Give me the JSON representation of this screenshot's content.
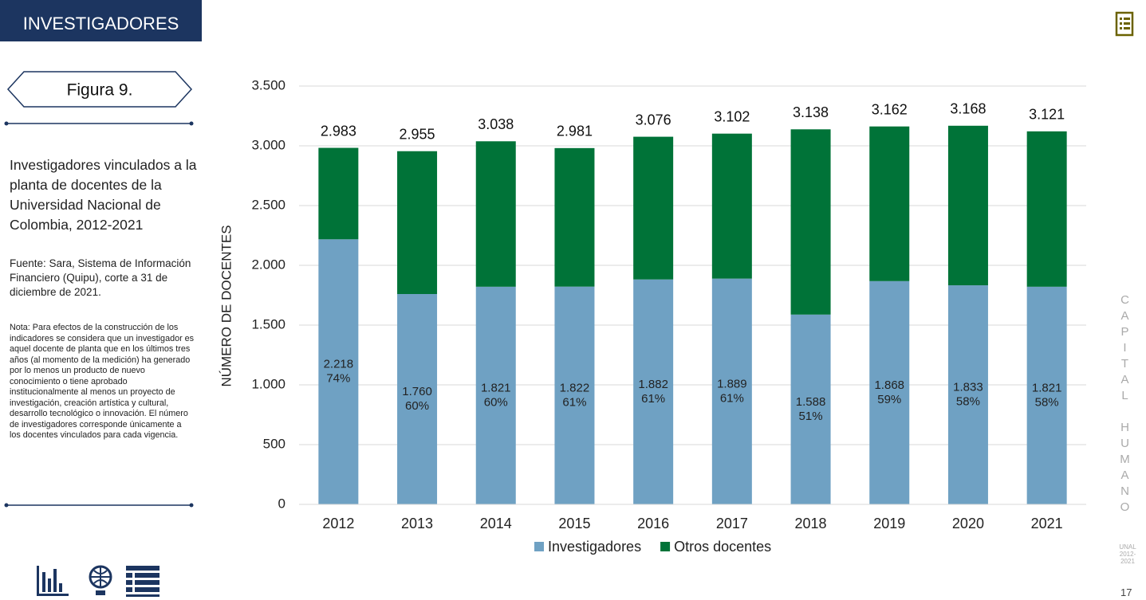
{
  "header": {
    "section": "INVESTIGADORES",
    "figure": "Figura 9.",
    "caption": "Investigadores vinculados a la planta de docentes de la Universidad Nacional de Colombia, 2012-2021",
    "source": "Fuente: Sara, Sistema de Información Financiero (Quipu), corte a 31 de diciembre de 2021.",
    "note": "Nota: Para efectos de la construcción de los indicadores se considera que un investigador es aquel docente de planta que en los últimos tres años (al momento de la medición) ha generado por lo menos un producto de nuevo conocimiento o tiene aprobado institucionalmente al menos un proyecto de investigación, creación artística y cultural, desarrollo tecnológico o innovación. El número de investigadores corresponde únicamente a los docentes vinculados para cada vigencia."
  },
  "side": {
    "title": "CAPITAL HUMANO",
    "brand": "UNAL",
    "period": "2012-2021",
    "page": "17"
  },
  "chart_data": {
    "type": "stacked_bar",
    "y_label": "NÚMERO DE DOCENTES",
    "categories": [
      "2012",
      "2013",
      "2014",
      "2015",
      "2016",
      "2017",
      "2018",
      "2019",
      "2020",
      "2021"
    ],
    "series": [
      {
        "name": "Investigadores",
        "color": "#6fa1c3",
        "values": [
          2218,
          1760,
          1821,
          1822,
          1882,
          1889,
          1588,
          1868,
          1833,
          1821
        ],
        "value_labels": [
          "2.218",
          "1.760",
          "1.821",
          "1.822",
          "1.882",
          "1.889",
          "1.588",
          "1.868",
          "1.833",
          "1.821"
        ]
      },
      {
        "name": "Otros docentes",
        "color": "#007338",
        "values": [
          765,
          1195,
          1217,
          1159,
          1194,
          1213,
          1550,
          1294,
          1335,
          1300
        ]
      }
    ],
    "shares": {
      "values": [
        74,
        60,
        60,
        61,
        61,
        61,
        51,
        59,
        58,
        58
      ],
      "value_labels": [
        "74%",
        "60%",
        "60%",
        "61%",
        "61%",
        "61%",
        "51%",
        "59%",
        "58%",
        "58%"
      ]
    },
    "totals": {
      "values": [
        2983,
        2955,
        3038,
        2981,
        3076,
        3102,
        3138,
        3162,
        3168,
        3121
      ],
      "value_labels": [
        "2.983",
        "2.955",
        "3.038",
        "2.981",
        "3.076",
        "3.102",
        "3.138",
        "3.162",
        "3.168",
        "3.121"
      ]
    },
    "ylim": [
      0,
      3500
    ],
    "yticks": [
      0,
      500,
      {
        "value": 1000,
        "label": "1.000"
      },
      {
        "value": 1500,
        "label": "1.500"
      },
      {
        "value": 2000,
        "label": "2.000"
      },
      {
        "value": 2500,
        "label": "2.500"
      },
      {
        "value": 3000,
        "label": "3.000"
      },
      {
        "value": 3500,
        "label": "3.500"
      }
    ],
    "grid": true,
    "legend": "bottom"
  }
}
